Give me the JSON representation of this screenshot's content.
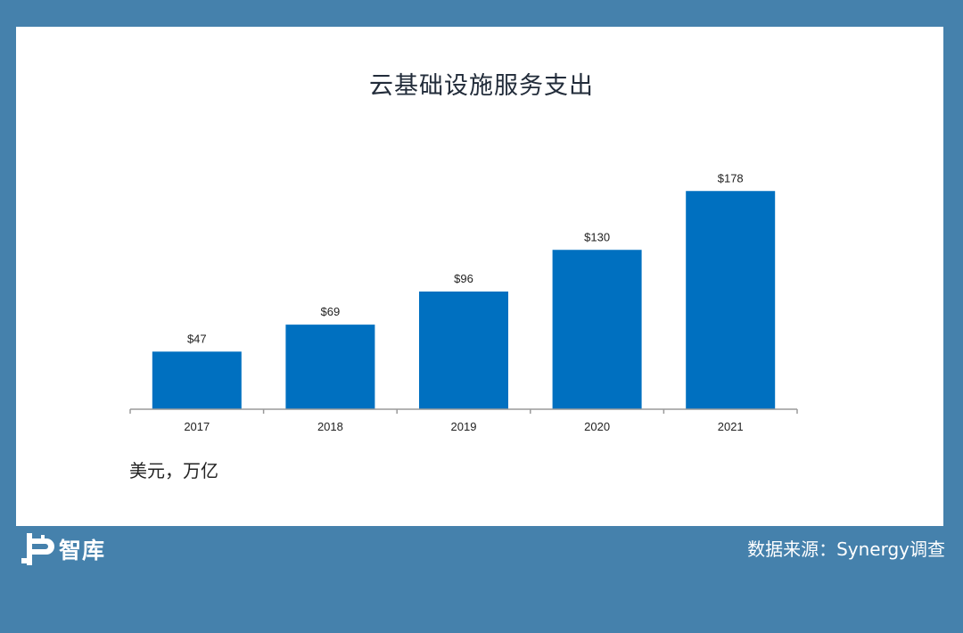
{
  "chart_data": {
    "type": "bar",
    "title": "云基础设施服务支出",
    "categories": [
      "2017",
      "2018",
      "2019",
      "2020",
      "2021"
    ],
    "values": [
      47,
      69,
      96,
      130,
      178
    ],
    "data_labels": [
      "$47",
      "$69",
      "$96",
      "$130",
      "$178"
    ],
    "xlabel": "",
    "ylabel": "",
    "ylim": [
      0,
      200
    ],
    "grid": false,
    "bar_color": "#0070c0"
  },
  "unit_label": "美元，万亿",
  "logo": {
    "text": "智库"
  },
  "source": "数据来源：Synergy调查",
  "colors": {
    "background": "#4581ac",
    "panel": "#ffffff",
    "bar": "#0070c0"
  }
}
